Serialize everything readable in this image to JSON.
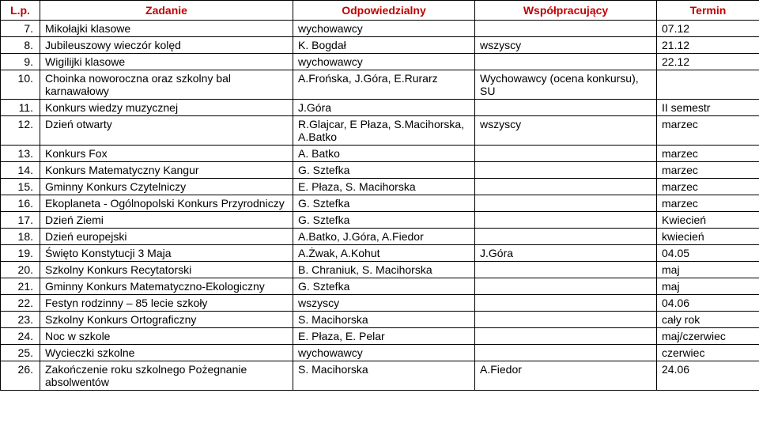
{
  "table": {
    "headers": [
      "L.p.",
      "Zadanie",
      "Odpowiedzialny",
      "Współpracujący",
      "Termin"
    ],
    "header_color": "#c00000",
    "border_color": "#000000",
    "font_size": 14,
    "rows": [
      {
        "lp": "7.",
        "zad": "Mikołajki klasowe",
        "odp": "wychowawcy",
        "wsp": "",
        "ter": "07.12"
      },
      {
        "lp": "8.",
        "zad": "Jubileuszowy wieczór kolęd",
        "odp": "K. Bogdał",
        "wsp": "wszyscy",
        "ter": "21.12"
      },
      {
        "lp": "9.",
        "zad": "Wigilijki klasowe",
        "odp": "wychowawcy",
        "wsp": "",
        "ter": "22.12"
      },
      {
        "lp": "10.",
        "zad": "Choinka noworoczna oraz szkolny bal karnawałowy",
        "odp": "A.Frońska, J.Góra, E.Rurarz",
        "wsp": "Wychowawcy (ocena konkursu), SU",
        "ter": ""
      },
      {
        "lp": "11.",
        "zad": "Konkurs wiedzy muzycznej",
        "odp": "J.Góra",
        "wsp": "",
        "ter": "II semestr"
      },
      {
        "lp": "12.",
        "zad": "Dzień otwarty",
        "odp": "R.Glajcar, E Płaza, S.Macihorska, A.Batko",
        "wsp": "wszyscy",
        "ter": "marzec"
      },
      {
        "lp": "13.",
        "zad": "Konkurs Fox",
        "odp": "A. Batko",
        "wsp": "",
        "ter": "marzec"
      },
      {
        "lp": "14.",
        "zad": "Konkurs Matematyczny Kangur",
        "odp": "G. Sztefka",
        "wsp": "",
        "ter": "marzec"
      },
      {
        "lp": "15.",
        "zad": "Gminny Konkurs Czytelniczy",
        "odp": "E. Płaza, S. Macihorska",
        "wsp": "",
        "ter": "marzec"
      },
      {
        "lp": "16.",
        "zad": "Ekoplaneta - Ogólnopolski Konkurs Przyrodniczy",
        "odp": "G. Sztefka",
        "wsp": "",
        "ter": "marzec"
      },
      {
        "lp": "17.",
        "zad": "Dzień Ziemi",
        "odp": "G. Sztefka",
        "wsp": "",
        "ter": "Kwiecień"
      },
      {
        "lp": "18.",
        "zad": "Dzień europejski",
        "odp": "A.Batko, J.Góra, A.Fiedor",
        "wsp": "",
        "ter": "kwiecień"
      },
      {
        "lp": "19.",
        "zad": "Święto Konstytucji 3 Maja",
        "odp": "A.Żwak, A.Kohut",
        "wsp": "J.Góra",
        "ter": "04.05"
      },
      {
        "lp": "20.",
        "zad": "Szkolny Konkurs Recytatorski",
        "odp": "B. Chraniuk, S. Macihorska",
        "wsp": "",
        "ter": "maj"
      },
      {
        "lp": "21.",
        "zad": "Gminny Konkurs Matematyczno-Ekologiczny",
        "odp": "G. Sztefka",
        "wsp": "",
        "ter": "maj"
      },
      {
        "lp": "22.",
        "zad": "Festyn rodzinny – 85 lecie szkoły",
        "odp": "wszyscy",
        "wsp": "",
        "ter": "04.06"
      },
      {
        "lp": "23.",
        "zad": "Szkolny Konkurs Ortograficzny",
        "odp": "S. Macihorska",
        "wsp": "",
        "ter": "cały rok"
      },
      {
        "lp": "24.",
        "zad": "Noc w szkole",
        "odp": "E. Płaza, E. Pelar",
        "wsp": "",
        "ter": "maj/czerwiec"
      },
      {
        "lp": "25.",
        "zad": "Wycieczki szkolne",
        "odp": "wychowawcy",
        "wsp": "",
        "ter": "czerwiec"
      },
      {
        "lp": "26.",
        "zad": "Zakończenie roku szkolnego Pożegnanie absolwentów",
        "odp": "S. Macihorska",
        "wsp": "A.Fiedor",
        "ter": "24.06"
      }
    ]
  }
}
